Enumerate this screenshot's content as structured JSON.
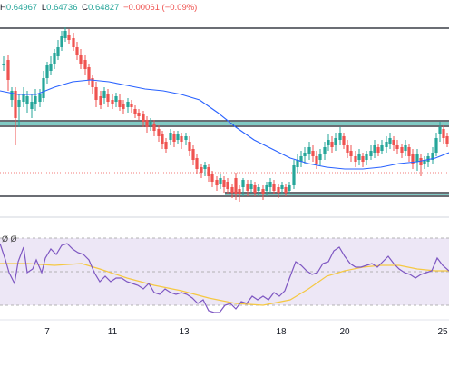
{
  "ohlc": {
    "high_label": "H",
    "high": "0.64967",
    "low_label": "L",
    "low": "0.64736",
    "close_label": "C",
    "close": "0.64827",
    "change": "−0.00061 (−0.09%)"
  },
  "rsi_panel": {
    "label": "Ø Ø"
  },
  "colors": {
    "bull": "#26a69a",
    "bear": "#ef5350",
    "ma_line": "#2962ff",
    "rsi_line": "#7e57c2",
    "rsi_ma": "#f5c842",
    "rsi_band": "#ede7f6",
    "zone_line": "#131722",
    "zone_teal": "#009688",
    "dotted_price": "#ef5350"
  },
  "chart_data": {
    "type": "candlestick",
    "x_tick_labels": [
      "7",
      "11",
      "13",
      "18",
      "20",
      "25"
    ],
    "horizontal_levels": {
      "resistance_top": "upper black box line",
      "resistance_zone": "dark double line with teal highlights",
      "support_zone": "dark double line with teal highlight"
    },
    "indicators": [
      "moving average (blue)",
      "RSI (purple)",
      "RSI moving average (yellow)"
    ]
  }
}
